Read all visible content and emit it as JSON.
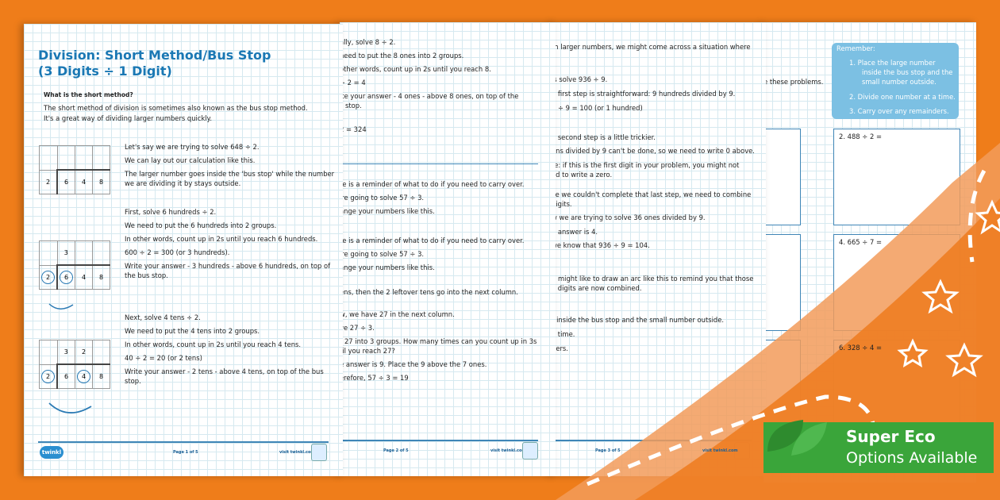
{
  "page1": {
    "title1": "Division: Short Method/Bus Stop",
    "title2": "(3 Digits ÷ 1 Digit)",
    "heading": "What is the short method?",
    "intro": [
      "The short method of division is sometimes also known as the bus stop method.",
      "It's a great way of dividing larger numbers quickly."
    ],
    "s1": [
      "Let's say we are trying to solve 648 ÷ 2.",
      "We can lay out our calculation like this.",
      "The larger number goes inside the 'bus stop' while the number",
      "we are dividing it by stays outside."
    ],
    "s2": [
      "First, solve 6 hundreds ÷ 2.",
      "We need to put the 6 hundreds into 2 groups.",
      "In other words, count up in 2s until you reach 6 hundreds.",
      "600 ÷ 2 = 300 (or 3 hundreds).",
      "Write your answer - 3 hundreds - above 6 hundreds, on top of",
      "the bus stop."
    ],
    "s3": [
      "Next, solve 4 tens ÷ 2.",
      "We need to put the 4 tens into 2 groups.",
      "In other words, count up in 2s until you reach 4 tens.",
      "40 ÷ 2 = 20 (or 2 tens)",
      "Write your answer - 2 tens - above 4 tens, on top of the bus",
      "stop."
    ],
    "grid1": [
      "2",
      "6",
      "4",
      "8"
    ],
    "grid2_top": "3",
    "grid3_top": [
      "3",
      "2"
    ],
    "footer": {
      "logo": "twinkl",
      "page": "Page 1 of 5",
      "url": "visit twinkl.com"
    }
  },
  "page2": {
    "lines": [
      "ally, solve 8 ÷ 2.",
      "need to put the 8 ones into 2 groups.",
      "other words, count up in 2s until you reach 8.",
      "÷ 2 = 4",
      "ite your answer - 4 ones - above 8 ones, on top of the",
      "s stop.",
      "2 = 324",
      "re is a reminder of what to do if you need to carry over.",
      "'re going to solve 57 ÷ 3.",
      "ange your numbers like this.",
      "re is a reminder of what to do if you need to carry over.",
      "'re going to solve 57 ÷ 3.",
      "ange your numbers like this.",
      "ens, then the 2 leftover tens go into the next column.",
      "w, we have 27 in the next column.",
      "ve 27 ÷ 3.",
      "t 27 into 3 groups. How many times can you count up in 3s",
      "til you reach 27?",
      "e answer is 9. Place the 9 above the 7 ones.",
      "erefore, 57 ÷ 3 = 19"
    ],
    "footer": {
      "page": "Page 2 of 5",
      "url": "visit twinkl.com"
    }
  },
  "page3": {
    "lines": [
      "th larger numbers, we might come across a situation where",
      "'s solve 936 ÷ 9.",
      "e first step is straightforward: 9 hundreds divided by 9.",
      "0 ÷ 9 = 100 (or 1 hundred)",
      "e second step is a little trickier.",
      "ens divided by 9 can't be done, so we need to write 0 above.",
      "te: if this is the first digit in your problem, you might not",
      "ed to write a zero.",
      "ce we couldn't complete that last step, we need to combine",
      "digits.",
      "w we are trying to solve 36 ones divided by 9.",
      "e answer is 4.",
      "we know that 936 ÷ 9 = 104.",
      "u might like to draw an arc like this to remind you that those",
      "o digits are now combined.",
      "r inside the bus stop and the small number outside.",
      "a time.",
      "ders."
    ],
    "footer": {
      "page": "Page 3 of 5",
      "url": "visit twinkl.com"
    }
  },
  "page4": {
    "instruction": "e these problems.",
    "remember": {
      "title": "Remember:",
      "items": [
        "1.  Place the large number",
        "inside the bus stop and the",
        "small number outside.",
        "2.  Divide one number at a time.",
        "3.  Carry over any remainders."
      ]
    },
    "problems": [
      "2. 488 ÷ 2 =",
      "4. 665 ÷ 7 =",
      "6. 328 ÷ 4 ="
    ]
  },
  "banner": {
    "line1": "Super Eco",
    "line2": "Options Available"
  },
  "colors": {
    "background": "#ef7d1a",
    "accent": "#1a78b4",
    "banner": "#3aa53a",
    "remember_box": "#7cc0e3"
  }
}
